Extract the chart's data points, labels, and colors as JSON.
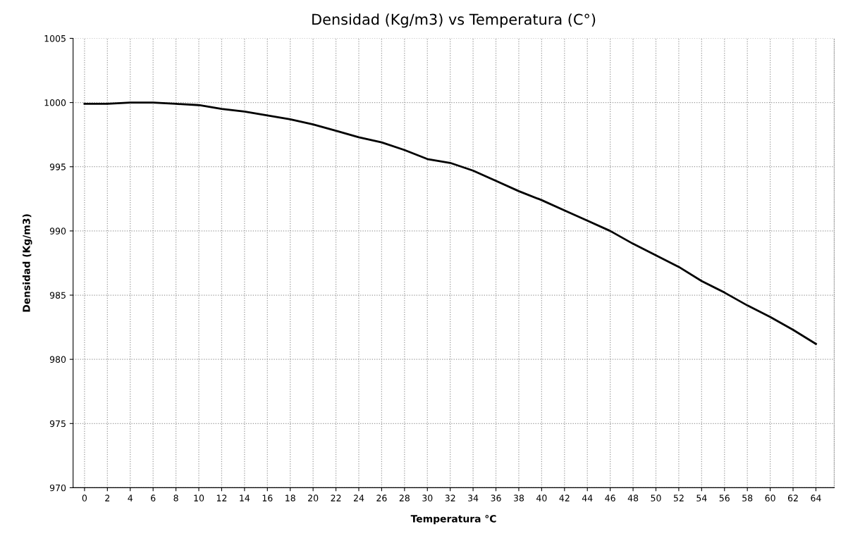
{
  "chart_data": {
    "type": "line",
    "title": "Densidad (Kg/m3) vs Temperatura (C°)",
    "xlabel": "Temperatura °C",
    "ylabel": "Densidad (Kg/m3)",
    "categories": [
      "0",
      "2",
      "4",
      "6",
      "8",
      "10",
      "12",
      "14",
      "16",
      "18",
      "20",
      "22",
      "24",
      "26",
      "28",
      "30",
      "32",
      "34",
      "36",
      "38",
      "40",
      "42",
      "44",
      "46",
      "48",
      "50",
      "52",
      "54",
      "56",
      "58",
      "60",
      "62",
      "64"
    ],
    "series": [
      {
        "color": "#000000",
        "values": [
          999.9,
          999.9,
          1000.0,
          1000.0,
          999.9,
          999.8,
          999.5,
          999.3,
          999.0,
          998.7,
          998.3,
          997.8,
          997.3,
          996.9,
          996.3,
          995.6,
          995.3,
          994.7,
          993.9,
          993.1,
          992.4,
          991.6,
          990.8,
          990.0,
          989.0,
          988.1,
          987.2,
          986.1,
          985.2,
          984.2,
          983.3,
          982.3,
          981.2
        ]
      }
    ],
    "ylim": [
      970,
      1005
    ],
    "yticks": [
      970,
      975,
      980,
      985,
      990,
      995,
      1000,
      1005
    ],
    "grid": true,
    "marker": "none",
    "line_style": "solid"
  }
}
